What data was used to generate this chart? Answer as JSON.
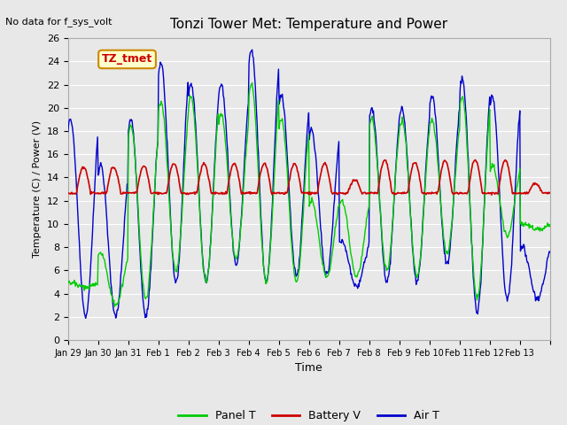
{
  "title": "Tonzi Tower Met: Temperature and Power",
  "no_data_text": "No data for f_sys_volt",
  "xlabel": "Time",
  "ylabel": "Temperature (C) / Power (V)",
  "ylim": [
    0,
    26
  ],
  "yticks": [
    0,
    2,
    4,
    6,
    8,
    10,
    12,
    14,
    16,
    18,
    20,
    22,
    24,
    26
  ],
  "xtick_labels": [
    "Jan 29",
    "Jan 30",
    "Jan 31",
    "Feb 1",
    "Feb 2",
    "Feb 3",
    "Feb 4",
    "Feb 5",
    "Feb 6",
    "Feb 7",
    "Feb 8",
    "Feb 9",
    "Feb 10",
    "Feb 11",
    "Feb 12",
    "Feb 13",
    ""
  ],
  "n_days": 16,
  "bg_color": "#e8e8e8",
  "plot_bg_color": "#e8e8e8",
  "panel_color": "#00cc00",
  "battery_color": "#cc0000",
  "air_color": "#0000cc",
  "legend_items": [
    "Panel T",
    "Battery V",
    "Air T"
  ],
  "annotation_text": "TZ_tmet",
  "annotation_bg": "#ffffcc",
  "annotation_border": "#cc8800",
  "daily_max_air": [
    19,
    15,
    19,
    24,
    22,
    22,
    25,
    21,
    18,
    8.5,
    20,
    20,
    21,
    22.5,
    21,
    8
  ],
  "daily_min_air": [
    2,
    2,
    2,
    5,
    5,
    6.5,
    5,
    5.5,
    5.5,
    4.5,
    5,
    5,
    6.5,
    2.5,
    3.5,
    3.5
  ],
  "daily_max_panel": [
    5,
    7.5,
    18.5,
    20.5,
    21,
    19.5,
    22,
    19,
    12,
    12,
    19,
    19,
    19,
    21,
    15,
    10
  ],
  "daily_min_panel": [
    4.5,
    3,
    3.5,
    6,
    5,
    7,
    5,
    5,
    5.5,
    5.5,
    6,
    5.5,
    7.5,
    3.5,
    9,
    9.5
  ],
  "daily_spike_bat": [
    14.9,
    14.9,
    15.0,
    15.2,
    15.2,
    15.2,
    15.2,
    15.2,
    15.2,
    13.8,
    15.5,
    15.3,
    15.5,
    15.5,
    15.5,
    13.5
  ],
  "bat_base": 12.65,
  "pts_per_day": 48
}
